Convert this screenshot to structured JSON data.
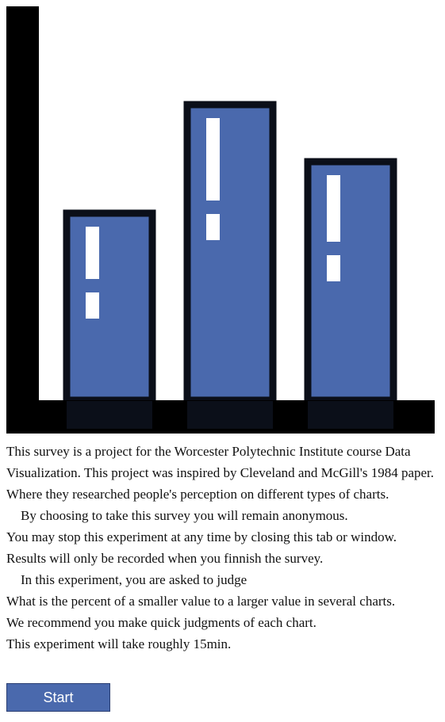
{
  "colors": {
    "bar_fill": "#4a69ad",
    "bar_border": "#0b0f19",
    "axis": "#000000",
    "mark": "#ffffff",
    "button_bg": "#4a69ad",
    "button_text": "#ffffff"
  },
  "logo": {
    "icon": "bar-chart-exclamation-icon",
    "relative_heights": [
      0.62,
      0.98,
      0.79
    ]
  },
  "intro": {
    "para1": "This survey is a project for the Worcester Polytechnic Institute course Data Visualization. This project was inspired by Cleveland and McGill's 1984 paper. Where they researched people's perception on different types of charts.",
    "para2": "By choosing to take this survey you will remain anonymous.",
    "para3": "You may stop this experiment at any time by closing this tab or window.",
    "para4": "Results will only be recorded when you finnish the survey.",
    "para5": "In this experiment, you are asked to judge",
    "para6": "What is the percent of a smaller value to a larger value in several charts.",
    "para7": "We recommend you make quick judgments of each chart.",
    "para8": "This experiment will take roughly 15min."
  },
  "start_button": {
    "label": "Start"
  }
}
